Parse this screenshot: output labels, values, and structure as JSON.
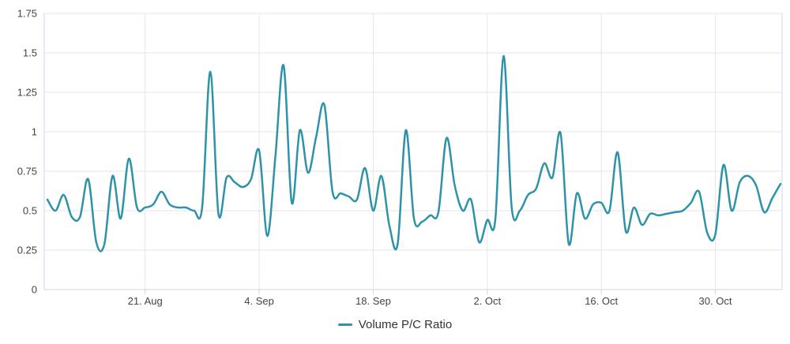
{
  "chart_data": {
    "type": "line",
    "title": "",
    "xlabel": "",
    "ylabel": "",
    "grid": true,
    "legend_position": "bottom-center",
    "ylim": [
      0,
      1.75
    ],
    "y_ticks": [
      {
        "value": 0,
        "label": "0"
      },
      {
        "value": 0.25,
        "label": "0.25"
      },
      {
        "value": 0.5,
        "label": "0.5"
      },
      {
        "value": 0.75,
        "label": "0.75"
      },
      {
        "value": 1,
        "label": "1"
      },
      {
        "value": 1.25,
        "label": "1.25"
      },
      {
        "value": 1.5,
        "label": "1.5"
      },
      {
        "value": 1.75,
        "label": "1.75"
      }
    ],
    "x_ticks": [
      {
        "index": 12,
        "label": "21. Aug"
      },
      {
        "index": 26,
        "label": "4. Sep"
      },
      {
        "index": 40,
        "label": "18. Sep"
      },
      {
        "index": 54,
        "label": "2. Oct"
      },
      {
        "index": 68,
        "label": "16. Oct"
      },
      {
        "index": 82,
        "label": "30. Oct"
      }
    ],
    "series": [
      {
        "name": "Volume P/C Ratio",
        "color": "#2e93a8",
        "values": [
          0.57,
          0.5,
          0.6,
          0.46,
          0.46,
          0.7,
          0.3,
          0.29,
          0.72,
          0.45,
          0.83,
          0.52,
          0.52,
          0.54,
          0.62,
          0.54,
          0.52,
          0.52,
          0.5,
          0.52,
          1.38,
          0.48,
          0.71,
          0.68,
          0.65,
          0.7,
          0.88,
          0.34,
          0.85,
          1.42,
          0.55,
          1.01,
          0.74,
          0.97,
          1.17,
          0.62,
          0.61,
          0.59,
          0.57,
          0.77,
          0.5,
          0.72,
          0.4,
          0.29,
          1.01,
          0.45,
          0.43,
          0.47,
          0.49,
          0.96,
          0.66,
          0.5,
          0.57,
          0.3,
          0.44,
          0.45,
          1.48,
          0.52,
          0.5,
          0.6,
          0.64,
          0.8,
          0.71,
          0.99,
          0.29,
          0.61,
          0.45,
          0.54,
          0.55,
          0.5,
          0.87,
          0.37,
          0.52,
          0.41,
          0.48,
          0.47,
          0.48,
          0.49,
          0.5,
          0.55,
          0.62,
          0.36,
          0.35,
          0.79,
          0.5,
          0.68,
          0.72,
          0.66,
          0.49,
          0.58,
          0.67
        ]
      }
    ]
  },
  "legend": {
    "label": "Volume P/C Ratio"
  },
  "colors": {
    "line": "#2e93a8",
    "grid": "#e6e6e6",
    "axis": "#ccd6eb",
    "y_tick_label": "#444444",
    "x_tick_label": "#444444",
    "legend_text": "#333333",
    "background": "#ffffff"
  }
}
